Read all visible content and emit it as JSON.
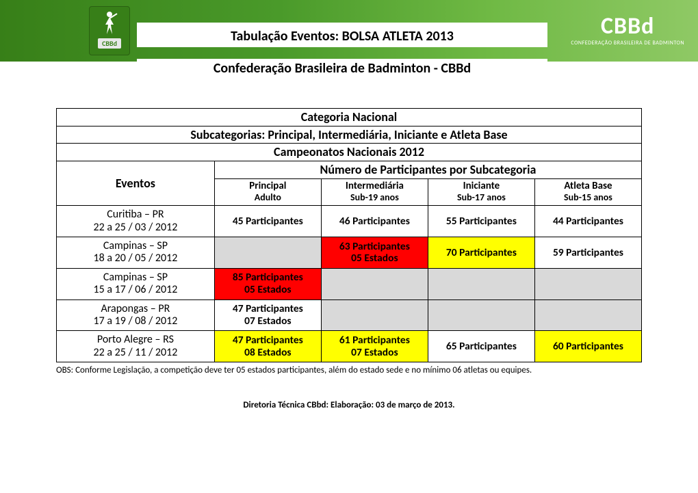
{
  "header": {
    "logo_label": "CBBd",
    "title": "Tabulação Eventos: BOLSA ATLETA 2013",
    "subtitle": "Confederação Brasileira de Badminton - CBBd",
    "brand_big": "CBBd",
    "brand_small": "CONFEDERAÇÃO BRASILEIRA DE BADMINTON"
  },
  "table": {
    "row1": "Categoria Nacional",
    "row2": "Subcategorias: Principal, Intermediária, Iniciante e Atleta Base",
    "row3": "Campeonatos Nacionais 2012",
    "row4_right": "Número de Participantes por Subcategoria",
    "eventos_label": "Eventos",
    "cols": [
      {
        "top": "Principal",
        "sub": "Adulto"
      },
      {
        "top": "Intermediária",
        "sub": "Sub-19 anos"
      },
      {
        "top": "Iniciante",
        "sub": "Sub-17 anos"
      },
      {
        "top": "Atleta Base",
        "sub": "Sub-15 anos"
      }
    ],
    "rows": [
      {
        "city": "Curitiba – PR",
        "date": "22 a 25 / 03 / 2012",
        "cells": [
          {
            "l1": "45 Participantes",
            "bg": "white"
          },
          {
            "l1": "46 Participantes",
            "bg": "white"
          },
          {
            "l1": "55 Participantes",
            "bg": "white"
          },
          {
            "l1": "44 Participantes",
            "bg": "white"
          }
        ]
      },
      {
        "city": "Campinas – SP",
        "date": "18 a 20 / 05 / 2012",
        "cells": [
          {
            "l1": "",
            "bg": "gray"
          },
          {
            "l1": "63 Participantes",
            "l2": "05 Estados",
            "bg": "red"
          },
          {
            "l1": "70 Participantes",
            "bg": "yellow"
          },
          {
            "l1": "59 Participantes",
            "bg": "white"
          }
        ]
      },
      {
        "city": "Campinas – SP",
        "date": "15 a 17 / 06 / 2012",
        "cells": [
          {
            "l1": "85 Participantes",
            "l2": "05 Estados",
            "bg": "red"
          },
          {
            "l1": "",
            "bg": "gray"
          },
          {
            "l1": "",
            "bg": "gray"
          },
          {
            "l1": "",
            "bg": "gray"
          }
        ]
      },
      {
        "city": "Arapongas – PR",
        "date": "17 a 19 / 08 / 2012",
        "cells": [
          {
            "l1": "47 Participantes",
            "l2": "07 Estados",
            "bg": "white"
          },
          {
            "l1": "",
            "bg": "gray"
          },
          {
            "l1": "",
            "bg": "gray"
          },
          {
            "l1": "",
            "bg": "gray"
          }
        ]
      },
      {
        "city": "Porto Alegre – RS",
        "date": "22 a 25 / 11 / 2012",
        "cells": [
          {
            "l1": "47 Participantes",
            "l2": "08 Estados",
            "bg": "yellow"
          },
          {
            "l1": "61 Participantes",
            "l2": "07 Estados",
            "bg": "yellow"
          },
          {
            "l1": "65 Participantes",
            "bg": "white"
          },
          {
            "l1": "60 Participantes",
            "bg": "yellow"
          }
        ]
      }
    ]
  },
  "obs": "OBS: Conforme Legislação, a competição deve ter 05 estados participantes, além do estado sede e no mínimo 06 atletas ou equipes.",
  "footer": "Diretoria Técnica CBbd: Elaboração: 03 de março de 2013.",
  "colors": {
    "green_dark": "#377f18",
    "green_light": "#8fc965",
    "gray": "#d9d9d9",
    "yellow": "#ffff00",
    "red": "#ff0000",
    "text": "#000000",
    "white": "#ffffff"
  }
}
